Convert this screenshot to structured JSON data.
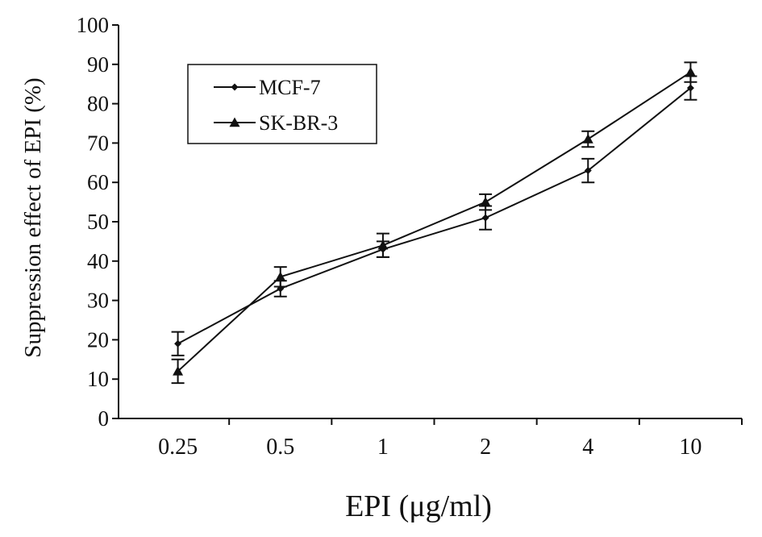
{
  "chart_data": {
    "type": "line",
    "title": "",
    "xlabel": "EPI (μg/ml)",
    "ylabel": "Suppression effect of EPI (%)",
    "categories": [
      "0.25",
      "0.5",
      "1",
      "2",
      "4",
      "10"
    ],
    "ylim": [
      0,
      100
    ],
    "yticks": [
      0,
      10,
      20,
      30,
      40,
      50,
      60,
      70,
      80,
      90,
      100
    ],
    "grid": false,
    "legend_position": "top-left",
    "series": [
      {
        "name": "MCF-7",
        "marker": "diamond",
        "values": [
          19,
          33,
          43,
          51,
          63,
          84
        ],
        "errors": [
          3,
          2,
          2,
          3,
          3,
          3
        ]
      },
      {
        "name": "SK-BR-3",
        "marker": "triangle",
        "values": [
          12,
          36,
          44,
          55,
          71,
          88
        ],
        "errors": [
          3,
          2.5,
          3,
          2,
          2,
          2.5
        ]
      }
    ],
    "colors": {
      "line": "#111111",
      "axis": "#111111",
      "background": "#ffffff"
    }
  }
}
